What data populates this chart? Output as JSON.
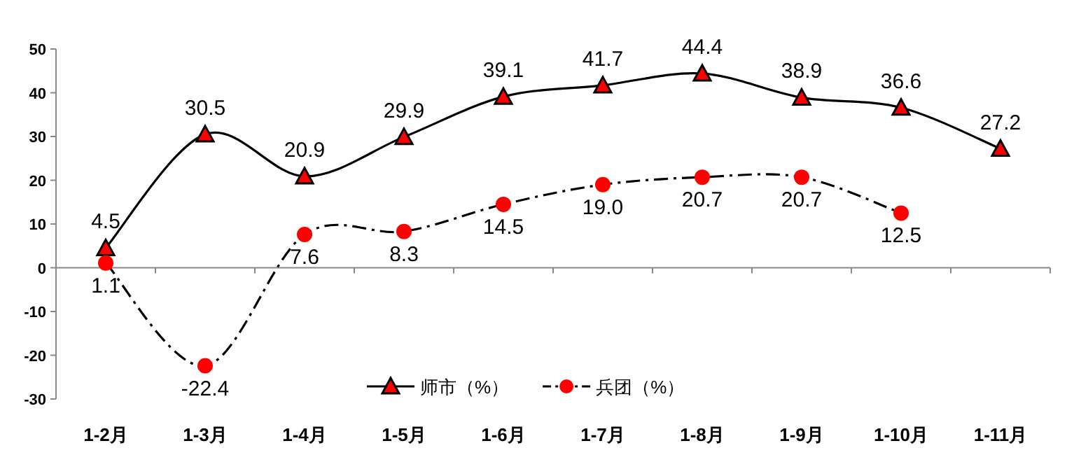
{
  "chart_data": {
    "type": "line",
    "categories": [
      "1-2月",
      "1-3月",
      "1-4月",
      "1-5月",
      "1-6月",
      "1-7月",
      "1-8月",
      "1-9月",
      "1-10月",
      "1-11月"
    ],
    "ylim": [
      -30,
      50
    ],
    "yticks": [
      -30,
      -20,
      -10,
      0,
      10,
      20,
      30,
      40,
      50
    ],
    "legend": "bottom",
    "series": [
      {
        "name": "师市（%）",
        "color": "#000000",
        "marker": "triangle",
        "line_style": "solid",
        "values": [
          4.5,
          30.5,
          20.9,
          29.9,
          39.1,
          41.7,
          44.4,
          38.9,
          36.6,
          27.2
        ],
        "value_labels": [
          "4.5",
          "30.5",
          "20.9",
          "29.9",
          "39.1",
          "41.7",
          "44.4",
          "38.9",
          "36.6",
          "27.2"
        ]
      },
      {
        "name": "兵团（%）",
        "color": "#000000",
        "marker": "circle",
        "line_style": "dashed",
        "values": [
          1.1,
          -22.4,
          7.6,
          8.3,
          14.5,
          19.0,
          20.7,
          20.7,
          12.5,
          null
        ],
        "value_labels": [
          "1.1",
          "-22.4",
          "7.6",
          "8.3",
          "14.5",
          "19.0",
          "20.7",
          "20.7",
          "12.5",
          null
        ]
      }
    ]
  }
}
